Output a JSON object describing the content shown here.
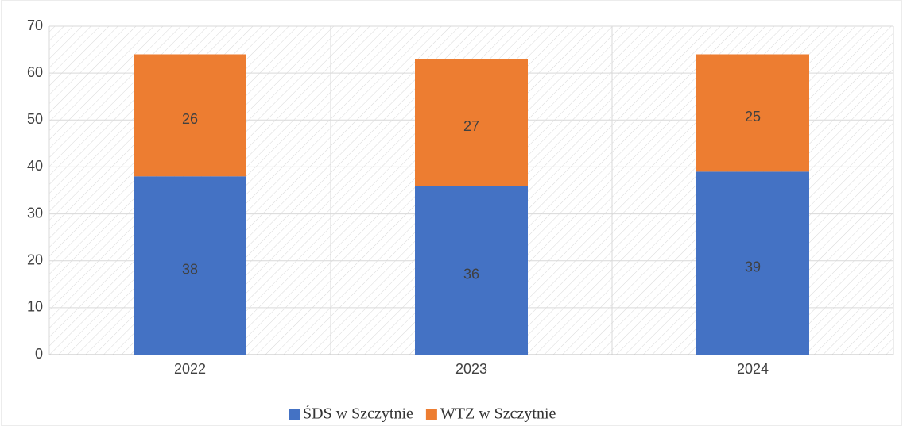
{
  "chart_data": {
    "type": "stacked_bar",
    "categories": [
      "2022",
      "2023",
      "2024"
    ],
    "series": [
      {
        "name": "ŚDS w Szczytnie",
        "color": "#4472c4",
        "values": [
          38,
          36,
          39
        ]
      },
      {
        "name": "WTZ w Szczytnie",
        "color": "#ed7d31",
        "values": [
          26,
          27,
          25
        ]
      }
    ],
    "ylim": [
      0,
      70
    ],
    "yticks": [
      0,
      10,
      20,
      30,
      40,
      50,
      60,
      70
    ],
    "grid": true,
    "legend": "bottom"
  }
}
